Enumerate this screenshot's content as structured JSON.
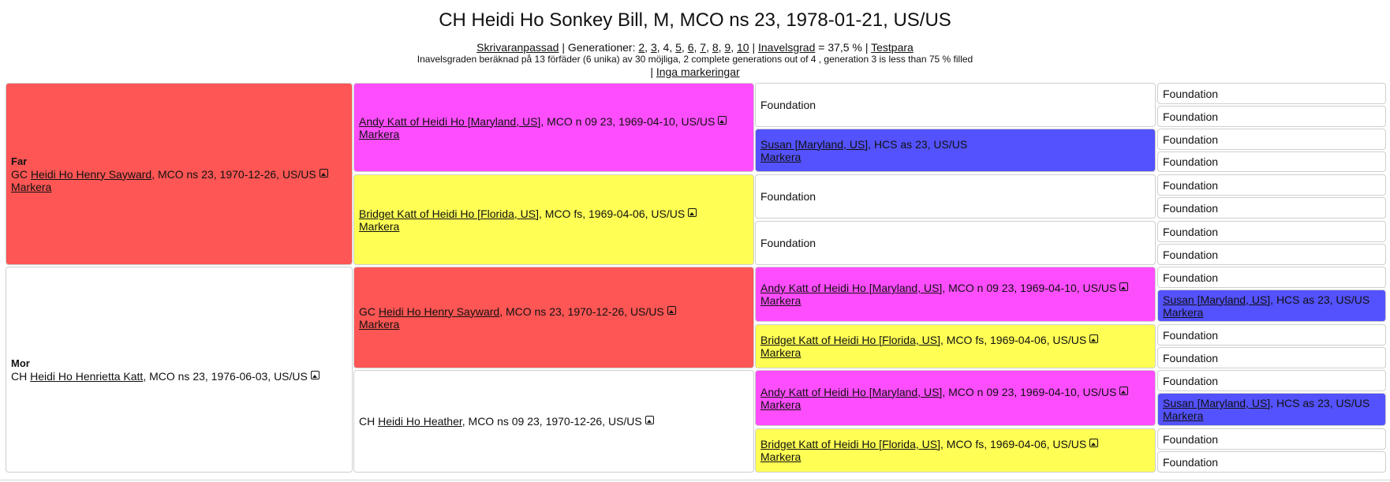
{
  "title": "CH Heidi Ho Sonkey Bill, M, MCO ns 23, 1978-01-21, US/US",
  "toolbar": {
    "printer_link": "Skrivaranpassad",
    "sep1": " | Generationer: ",
    "generations": [
      "2",
      "3",
      "4",
      "5",
      "6",
      "7",
      "8",
      "9",
      "10"
    ],
    "sep2": " | ",
    "inbreeding_link": "Inavelsgrad",
    "inbreeding_value": " = 37,5 % | ",
    "test_link": "Testpara"
  },
  "info_line": "Inavelsgraden beräknad på 13 förfäder (6 unika) av 30 möjliga, 2 complete generations out of 4 , generation 3 is less than 75 % filled",
  "markings": {
    "prefix": "| ",
    "link": "Inga markeringar"
  },
  "labels": {
    "father": "Far",
    "mother": "Mor",
    "mark": "Markera",
    "foundation": "Foundation"
  },
  "cats": {
    "henry": {
      "prefix": "GC ",
      "name": "Heidi Ho Henry Sayward",
      "details": ", MCO ns 23, 1970-12-26, US/US"
    },
    "henrietta": {
      "prefix": "CH ",
      "name": "Heidi Ho Henrietta Katt",
      "details": ", MCO ns 23, 1976-06-03, US/US"
    },
    "andy": {
      "prefix": "",
      "name": "Andy Katt of Heidi Ho [Maryland, US]",
      "details": ", MCO n 09 23, 1969-04-10, US/US"
    },
    "bridget": {
      "prefix": "",
      "name": "Bridget Katt of Heidi Ho [Florida, US]",
      "details": ", MCO fs, 1969-04-06, US/US"
    },
    "heather": {
      "prefix": "CH ",
      "name": "Heidi Ho Heather",
      "details": ", MCO ns 09 23, 1970-12-26, US/US"
    },
    "susan": {
      "prefix": "",
      "name": "Susan [Maryland, US]",
      "details": ", HCS as 23, US/US"
    }
  },
  "colors": {
    "red": "#fd5654",
    "magenta": "#fe4dfd",
    "yellow": "#fefe54",
    "blue": "#5352fd"
  }
}
